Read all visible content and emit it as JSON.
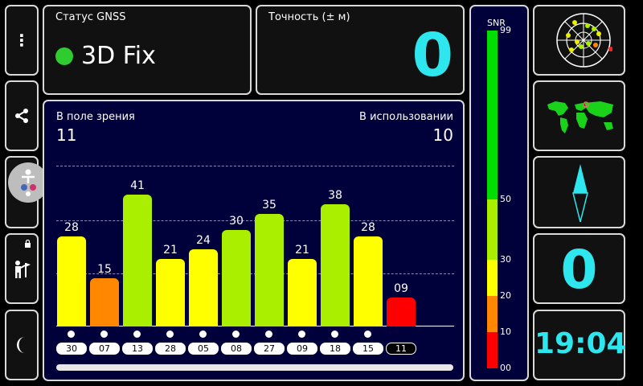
{
  "status": {
    "label": "Статус GNSS",
    "value": "3D Fix"
  },
  "accuracy": {
    "label": "Точность (± м)",
    "value": "0"
  },
  "sky": {
    "in_view_label": "В поле зрения",
    "in_view": "11",
    "in_use_label": "В использовании",
    "in_use": "10"
  },
  "snr": {
    "title": "SNR",
    "ticks": [
      "99",
      "50",
      "30",
      "20",
      "10",
      "00"
    ],
    "colors": {
      "strong": "#00dd00",
      "good": "#aaee00",
      "fair": "#ffff00",
      "weak": "#ff8800",
      "bad": "#ff0000"
    }
  },
  "chart_data": {
    "type": "bar",
    "categories": [
      "30",
      "07",
      "13",
      "28",
      "05",
      "08",
      "27",
      "09",
      "18",
      "15",
      "11"
    ],
    "values": [
      28,
      15,
      41,
      21,
      24,
      30,
      35,
      21,
      38,
      28,
      9
    ],
    "value_labels": [
      "28",
      "15",
      "41",
      "21",
      "24",
      "30",
      "35",
      "21",
      "38",
      "28",
      "09"
    ],
    "in_use": [
      true,
      true,
      true,
      true,
      true,
      true,
      true,
      true,
      true,
      true,
      false
    ],
    "ylim": [
      0,
      50
    ],
    "grid": true
  },
  "speed": {
    "value": "0"
  },
  "clock": {
    "time": "19:04"
  },
  "sidebar": [
    "menu-icon",
    "share-icon",
    "accessibility-icon",
    "person-flag-icon",
    "moon-icon"
  ]
}
